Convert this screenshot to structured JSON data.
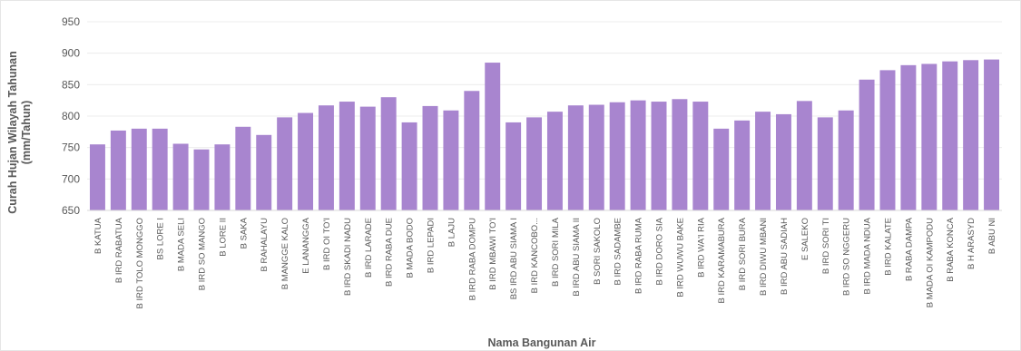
{
  "chart_data": {
    "type": "bar",
    "title": "",
    "xlabel": "Nama Bangunan Air",
    "ylabel": "Curah Hujan Wilayah Tahunan (mm/Tahun)",
    "ylabel_lines": [
      "Curah Hujan Wilayah Tahunan",
      "(mm/Tahun)"
    ],
    "ylim": [
      650,
      950
    ],
    "yticks": [
      650,
      700,
      750,
      800,
      850,
      900,
      950
    ],
    "grid": true,
    "legend": "none",
    "bar_color": "#a885cf",
    "categories": [
      "B KATUA",
      "B IRD RABATUA",
      "B IRD TOLO MONGGO",
      "BS LORE I",
      "B MADA SELI",
      "B IRD SO MANGO",
      "B LORE II",
      "B SAKA",
      "B RAHALAYU",
      "B MANGGE KALO",
      "E LANANGGA",
      "B IRD OI TO'I",
      "B IRD SKADI NADU",
      "B IRD LARADE",
      "B IRD RABA DUE",
      "B MADA BODO",
      "B IRD LEPADI",
      "B LAJU",
      "B IRD RABA DOMPU",
      "B IRD MBAWI TO'I",
      "BS IRD ABU SIAMA I",
      "B IRD KANCOBO...",
      "B IRD SORI MILA",
      "B IRD ABU SIAMA II",
      "B SORI SAKOLO",
      "B IRD SADAMBE",
      "B IRD RABA RUMA",
      "B IRD DORO SIA",
      "B IRD WUWU BAKE",
      "B IRD WA'I RIA",
      "B IRD KARAMABURA",
      "B IRD SORI BURA",
      "B IRD DIWU MBANI",
      "B IRD ABU SADIAH",
      "E SALEKO",
      "B IRD SORI TI",
      "B IRD SO NGGERU",
      "B IRD MADA NDUA",
      "B IRD KALATE",
      "B RABA DAMPA",
      "B MADA OI KAMPODU",
      "B RABA KONCA",
      "B H ARASYD",
      "B ABU NI"
    ],
    "values": [
      755,
      777,
      780,
      780,
      756,
      747,
      755,
      783,
      770,
      798,
      805,
      817,
      823,
      815,
      830,
      790,
      816,
      809,
      840,
      885,
      790,
      798,
      807,
      817,
      818,
      822,
      825,
      823,
      827,
      823,
      780,
      793,
      807,
      803,
      824,
      798,
      809,
      858,
      873,
      881,
      883,
      887,
      889,
      890
    ]
  }
}
